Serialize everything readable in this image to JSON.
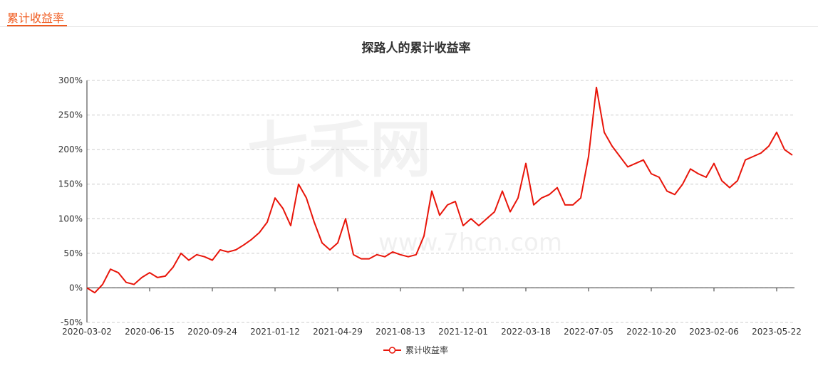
{
  "tab": "累计收益率",
  "watermark": {
    "brand": "七禾网",
    "url": "www.7hcn.com"
  },
  "chart_data": {
    "type": "line",
    "title": "探路人的累计收益率",
    "categories": [
      "2020-03-02",
      null,
      null,
      null,
      null,
      null,
      null,
      null,
      "2020-06-15",
      null,
      null,
      null,
      null,
      null,
      null,
      null,
      "2020-09-24",
      null,
      null,
      null,
      null,
      null,
      null,
      null,
      "2021-01-12",
      null,
      null,
      null,
      null,
      null,
      null,
      null,
      "2021-04-29",
      null,
      null,
      null,
      null,
      null,
      null,
      null,
      "2021-08-13",
      null,
      null,
      null,
      null,
      null,
      null,
      null,
      "2021-12-01",
      null,
      null,
      null,
      null,
      null,
      null,
      null,
      "2022-03-18",
      null,
      null,
      null,
      null,
      null,
      null,
      null,
      "2022-07-05",
      null,
      null,
      null,
      null,
      null,
      null,
      null,
      "2022-10-20",
      null,
      null,
      null,
      null,
      null,
      null,
      null,
      "2023-02-06",
      null,
      null,
      null,
      null,
      null,
      null,
      null,
      "2023-05-22",
      null,
      null
    ],
    "series": [
      {
        "name": "累计收益率",
        "color": "#e8150a",
        "values": [
          0,
          -7,
          5,
          27,
          22,
          8,
          5,
          15,
          22,
          15,
          17,
          30,
          50,
          40,
          48,
          45,
          40,
          55,
          52,
          55,
          62,
          70,
          80,
          95,
          130,
          115,
          90,
          150,
          130,
          95,
          65,
          55,
          65,
          100,
          48,
          42,
          42,
          48,
          45,
          52,
          48,
          45,
          48,
          75,
          140,
          105,
          120,
          125,
          90,
          100,
          90,
          100,
          110,
          140,
          110,
          130,
          180,
          120,
          130,
          135,
          145,
          120,
          120,
          130,
          190,
          290,
          225,
          205,
          190,
          175,
          180,
          185,
          165,
          160,
          140,
          135,
          150,
          172,
          165,
          160,
          180,
          155,
          145,
          155,
          185,
          190,
          195,
          205,
          225,
          200,
          192
        ]
      }
    ],
    "ylim": [
      -50,
      300
    ],
    "yticks": [
      {
        "value": -50,
        "label": "-50%"
      },
      {
        "value": 0,
        "label": "0%"
      },
      {
        "value": 50,
        "label": "50%"
      },
      {
        "value": 100,
        "label": "100%"
      },
      {
        "value": 150,
        "label": "150%"
      },
      {
        "value": 200,
        "label": "200%"
      },
      {
        "value": 250,
        "label": "250%"
      },
      {
        "value": 300,
        "label": "300%"
      }
    ],
    "grid": true,
    "legend": "bottom"
  }
}
